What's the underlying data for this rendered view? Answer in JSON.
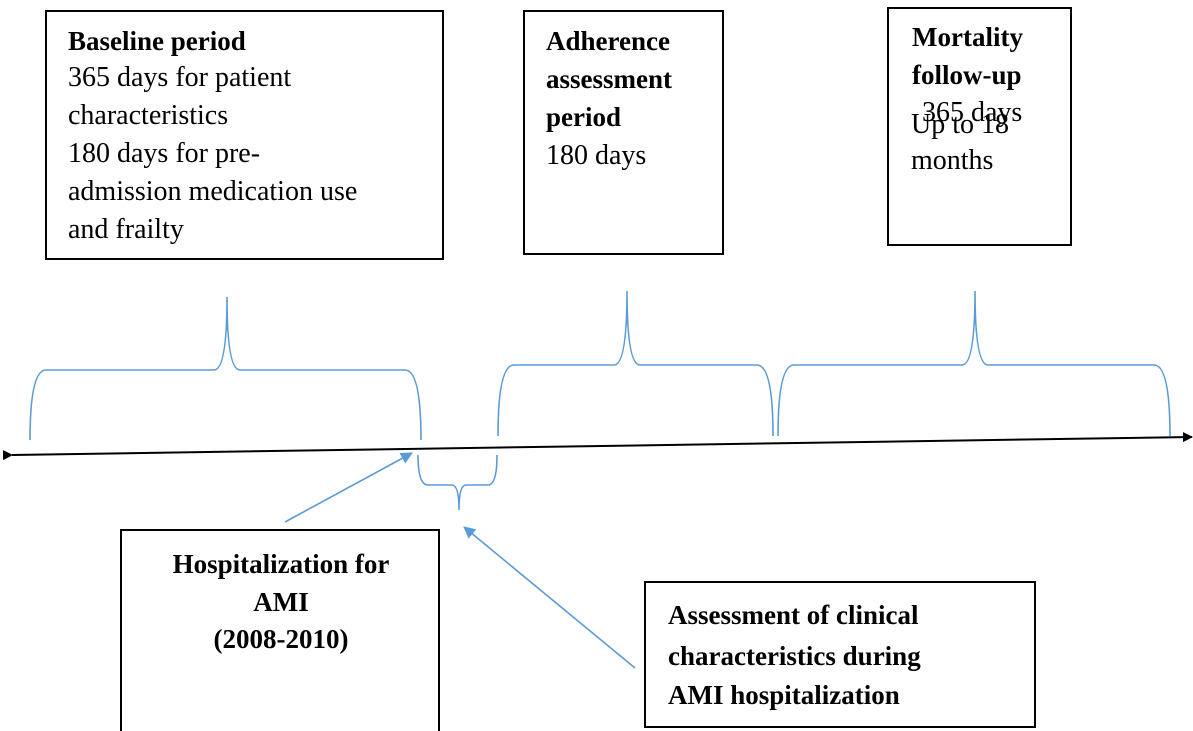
{
  "boxes": [
    {
      "title": [
        "Baseline period"
      ],
      "text": [
        "365 days for patient",
        "characteristics",
        "180 days for pre-",
        "admission medication use",
        "and frailty"
      ]
    },
    {
      "title": [
        "Adherence",
        "assessment",
        "period"
      ],
      "text": [
        "180 days"
      ]
    },
    {
      "title": [
        "Mortality",
        "follow-up"
      ],
      "text": [
        "365 days",
        "Up to 18",
        "months"
      ]
    }
  ],
  "events": [
    {
      "text": [
        "Hospitalization for",
        "AMI",
        "(2008-2010)"
      ]
    },
    {
      "text": [
        "Assessment of clinical",
        "characteristics during",
        "AMI hospitalization"
      ]
    }
  ]
}
